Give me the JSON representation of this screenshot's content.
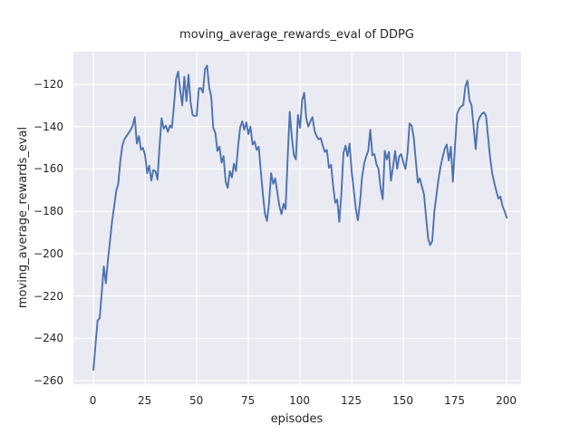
{
  "chart_data": {
    "type": "line",
    "title": "moving_average_rewards_eval of DDPG",
    "xlabel": "episodes",
    "ylabel": "moving_average_rewards_eval",
    "series_name": "moving_average_rewards_eval",
    "x_start": 0,
    "x_step": 1,
    "values": [
      -255,
      -243,
      -231.5,
      -230.5,
      -219,
      -206,
      -214,
      -203,
      -194,
      -185,
      -178,
      -170.5,
      -167,
      -156,
      -149,
      -146,
      -144.5,
      -143,
      -141.5,
      -139.5,
      -135.5,
      -148,
      -144.5,
      -151,
      -150,
      -153.5,
      -162,
      -158.5,
      -165.5,
      -160.5,
      -161,
      -165,
      -149,
      -136,
      -141,
      -139.5,
      -142.5,
      -139.5,
      -140.5,
      -130,
      -117.5,
      -114,
      -123,
      -130,
      -116.5,
      -128,
      -115.5,
      -128.5,
      -134.5,
      -135,
      -134.7,
      -122,
      -121.8,
      -124,
      -113,
      -111.2,
      -121.5,
      -125.8,
      -140.5,
      -143,
      -151.5,
      -149.5,
      -157,
      -154,
      -166,
      -169,
      -161,
      -164,
      -157.5,
      -161,
      -149.5,
      -140.5,
      -137.5,
      -141.5,
      -138,
      -143.5,
      -140,
      -148.5,
      -147,
      -151,
      -149.5,
      -161,
      -172,
      -181,
      -184.5,
      -176,
      -162,
      -167,
      -164.5,
      -171,
      -177.5,
      -181.4,
      -176.5,
      -179,
      -155,
      -133,
      -145,
      -153.5,
      -155.5,
      -134.5,
      -140.5,
      -127.5,
      -124,
      -136,
      -140,
      -137.5,
      -135.5,
      -142,
      -144.5,
      -146,
      -145.5,
      -149,
      -152,
      -151,
      -159.5,
      -158,
      -168,
      -176,
      -174.5,
      -185,
      -171.5,
      -152.5,
      -149,
      -154,
      -148,
      -161.5,
      -170,
      -179,
      -184.3,
      -176,
      -164,
      -157.5,
      -154,
      -151.5,
      -141.5,
      -153.5,
      -153,
      -158,
      -160,
      -169,
      -174.3,
      -151.5,
      -155.5,
      -152,
      -165.5,
      -159,
      -151.5,
      -160,
      -154,
      -153,
      -157,
      -160,
      -152.5,
      -138.5,
      -139.5,
      -145,
      -156,
      -166.5,
      -164.5,
      -168.5,
      -172,
      -183,
      -193,
      -196,
      -194,
      -180,
      -172.5,
      -165,
      -159,
      -154.5,
      -150.5,
      -148.5,
      -156,
      -149.5,
      -166,
      -149,
      -134,
      -131.7,
      -130.4,
      -129.8,
      -121,
      -118.3,
      -127.5,
      -129.8,
      -140,
      -150.7,
      -138,
      -135.5,
      -134,
      -133.3,
      -135,
      -145,
      -154.5,
      -162,
      -166.5,
      -170.5,
      -174,
      -173,
      -177.5,
      -180,
      -183
    ],
    "xlim": [
      -9.7,
      207.2
    ],
    "ylim": [
      -261.7,
      -104.6
    ],
    "xtick_values": [
      0,
      25,
      50,
      75,
      100,
      125,
      150,
      175,
      200
    ],
    "xtick_labels": [
      "0",
      "25",
      "50",
      "75",
      "100",
      "125",
      "150",
      "175",
      "200"
    ],
    "ytick_values": [
      -260,
      -240,
      -220,
      -200,
      -180,
      -160,
      -140,
      -120
    ],
    "ytick_labels": [
      "−260",
      "−240",
      "−220",
      "−200",
      "−180",
      "−160",
      "−140",
      "−120"
    ],
    "grid": true,
    "legend_position": "none",
    "colors": {
      "line": "#4c72b0",
      "plot_background": "#eaeaf2",
      "grid": "#ffffff",
      "figure_background": "#ffffff",
      "text": "#262626"
    }
  }
}
